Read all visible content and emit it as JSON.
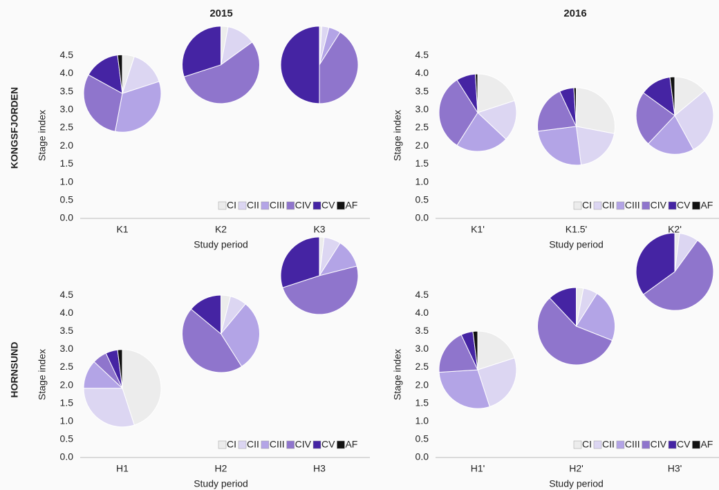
{
  "chart_data": [
    {
      "type": "pie",
      "title": "2015",
      "row_label": "KONGSFJORDEN",
      "y_label": "Stage index",
      "x_label": "Study period",
      "categories": [
        "K1",
        "K2",
        "K3"
      ],
      "y": [
        3.45,
        4.24,
        4.24
      ],
      "ylim": [
        0,
        5.5
      ],
      "yticks": [
        {
          "value": 0,
          "label": "0.0"
        },
        0.5,
        {
          "value": 1,
          "label": "1.0"
        },
        1.5,
        {
          "value": 2,
          "label": "2.0"
        },
        2.5,
        {
          "value": 3,
          "label": "3.0"
        },
        3.5,
        {
          "value": 4,
          "label": "4.0"
        },
        4.5
      ],
      "legend": "bottom-right",
      "series": [
        {
          "name": "CI",
          "color": "#ececec",
          "values": [
            5,
            3,
            1
          ]
        },
        {
          "name": "CII",
          "color": "#dcd6f2",
          "values": [
            15,
            12,
            3
          ]
        },
        {
          "name": "CIII",
          "color": "#b3a4e6",
          "values": [
            33,
            0,
            5
          ]
        },
        {
          "name": "CIV",
          "color": "#8f75cc",
          "values": [
            30,
            55,
            41
          ]
        },
        {
          "name": "CV",
          "color": "#4524a3",
          "values": [
            15,
            30,
            50
          ]
        },
        {
          "name": "AF",
          "color": "#111111",
          "values": [
            2,
            0,
            0
          ]
        }
      ]
    },
    {
      "type": "pie",
      "title": "2016",
      "y_label": "Stage index",
      "x_label": "Study period",
      "categories": [
        "K1'",
        "K1.5'",
        "K2'"
      ],
      "y": [
        2.92,
        2.54,
        2.84
      ],
      "ylim": [
        0,
        5.5
      ],
      "yticks": [
        {
          "value": 0,
          "label": "0.0"
        },
        0.5,
        {
          "value": 1,
          "label": "1.0"
        },
        1.5,
        {
          "value": 2,
          "label": "2.0"
        },
        2.5,
        {
          "value": 3,
          "label": "3.0"
        },
        3.5,
        {
          "value": 4,
          "label": "4.0"
        },
        4.5
      ],
      "legend": "bottom-right",
      "series": [
        {
          "name": "CI",
          "color": "#ececec",
          "values": [
            20,
            28,
            14
          ]
        },
        {
          "name": "CII",
          "color": "#dcd6f2",
          "values": [
            17,
            20,
            28
          ]
        },
        {
          "name": "CIII",
          "color": "#b3a4e6",
          "values": [
            22,
            25,
            20
          ]
        },
        {
          "name": "CIV",
          "color": "#8f75cc",
          "values": [
            32,
            20,
            23
          ]
        },
        {
          "name": "CV",
          "color": "#4524a3",
          "values": [
            8,
            6,
            13
          ]
        },
        {
          "name": "AF",
          "color": "#111111",
          "values": [
            1,
            1,
            2
          ]
        }
      ]
    },
    {
      "type": "pie",
      "row_label": "HORNSUND",
      "y_label": "Stage index",
      "x_label": "Study period",
      "categories": [
        "H1",
        "H2",
        "H3"
      ],
      "y": [
        1.92,
        3.43,
        5.04
      ],
      "ylim": [
        0,
        5.7
      ],
      "yticks": [
        {
          "value": 0,
          "label": "0.0"
        },
        0.5,
        {
          "value": 1,
          "label": "1.0"
        },
        1.5,
        {
          "value": 2,
          "label": "2.0"
        },
        2.5,
        {
          "value": 3,
          "label": "3.0"
        },
        3.5,
        {
          "value": 4,
          "label": "4.0"
        },
        4.5
      ],
      "legend": "bottom-right",
      "series": [
        {
          "name": "CI",
          "color": "#ececec",
          "values": [
            45,
            4,
            2
          ]
        },
        {
          "name": "CII",
          "color": "#dcd6f2",
          "values": [
            30,
            7,
            7
          ]
        },
        {
          "name": "CIII",
          "color": "#b3a4e6",
          "values": [
            12,
            30,
            12
          ]
        },
        {
          "name": "CIV",
          "color": "#8f75cc",
          "values": [
            6,
            45,
            49
          ]
        },
        {
          "name": "CV",
          "color": "#4524a3",
          "values": [
            5,
            14,
            30
          ]
        },
        {
          "name": "AF",
          "color": "#111111",
          "values": [
            2,
            0,
            0
          ]
        }
      ]
    },
    {
      "type": "pie",
      "y_label": "Stage index",
      "x_label": "Study period",
      "categories": [
        "H1'",
        "H2'",
        "H3'"
      ],
      "y": [
        2.43,
        3.64,
        5.15
      ],
      "ylim": [
        0,
        5.7
      ],
      "yticks": [
        {
          "value": 0,
          "label": "0.0"
        },
        0.5,
        {
          "value": 1,
          "label": "1.0"
        },
        1.5,
        {
          "value": 2,
          "label": "2.0"
        },
        2.5,
        {
          "value": 3,
          "label": "3.0"
        },
        3.5,
        {
          "value": 4,
          "label": "4.0"
        },
        4.5
      ],
      "legend": "bottom-right",
      "series": [
        {
          "name": "CI",
          "color": "#ececec",
          "values": [
            20,
            3,
            2
          ]
        },
        {
          "name": "CII",
          "color": "#dcd6f2",
          "values": [
            25,
            6,
            8
          ]
        },
        {
          "name": "CIII",
          "color": "#b3a4e6",
          "values": [
            29,
            22,
            0
          ]
        },
        {
          "name": "CIV",
          "color": "#8f75cc",
          "values": [
            19,
            57,
            55
          ]
        },
        {
          "name": "CV",
          "color": "#4524a3",
          "values": [
            5,
            12,
            35
          ]
        },
        {
          "name": "AF",
          "color": "#111111",
          "values": [
            2,
            0,
            0
          ]
        }
      ]
    }
  ]
}
